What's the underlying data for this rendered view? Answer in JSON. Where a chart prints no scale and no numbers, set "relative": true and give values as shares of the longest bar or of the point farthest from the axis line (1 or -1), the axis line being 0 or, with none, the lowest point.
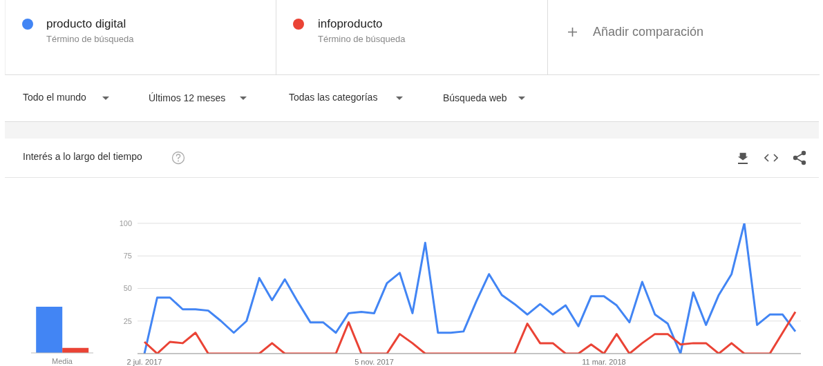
{
  "chart_data": [
    {
      "type": "bar",
      "relative": true,
      "categories": [
        "Media"
      ],
      "series": [
        {
          "color": "#4285f4",
          "values": [
            1
          ]
        },
        {
          "color": "#ea4335",
          "values": [
            0.11
          ]
        }
      ]
    },
    {
      "type": "line",
      "title": "Interés a lo largo del tiempo",
      "annotations": [
        "Término de búsqueda",
        "Término de búsqueda",
        "Añadir comparación",
        "Todo el mundo",
        "Últimos 12 meses",
        "Todas las categorías",
        "Búsqueda web"
      ],
      "categories": [
        "2 jul. 2017",
        null,
        null,
        null,
        null,
        null,
        null,
        null,
        null,
        null,
        null,
        null,
        null,
        null,
        null,
        null,
        null,
        null,
        "5 nov. 2017",
        null,
        null,
        null,
        null,
        null,
        null,
        null,
        null,
        null,
        null,
        null,
        null,
        null,
        null,
        null,
        null,
        null,
        "11 mar. 2018",
        null,
        null,
        null,
        null,
        null,
        null,
        null,
        null,
        null,
        null,
        null,
        null,
        null,
        null,
        null
      ],
      "series": [
        {
          "name": "producto digital",
          "color": "#4285f4",
          "values": [
            0,
            43,
            43,
            34,
            34,
            33,
            25,
            16,
            25,
            58,
            41,
            57,
            40,
            24,
            24,
            16,
            31,
            32,
            31,
            54,
            62,
            31,
            85,
            16,
            16,
            17,
            40,
            61,
            45,
            38,
            30,
            38,
            30,
            37,
            21,
            44,
            44,
            37,
            24,
            55,
            30,
            23,
            0,
            47,
            22,
            45,
            61,
            100,
            22,
            30,
            30,
            17
          ]
        },
        {
          "name": "infoproducto",
          "color": "#ea4335",
          "values": [
            9,
            0,
            9,
            8,
            16,
            0,
            0,
            0,
            0,
            0,
            8,
            0,
            0,
            0,
            0,
            0,
            24,
            0,
            0,
            0,
            15,
            8,
            0,
            0,
            0,
            0,
            0,
            0,
            0,
            0,
            23,
            8,
            8,
            0,
            0,
            7,
            0,
            15,
            0,
            8,
            15,
            15,
            7,
            8,
            8,
            0,
            8,
            0,
            0,
            0,
            16,
            32
          ]
        }
      ],
      "ylim": [
        0,
        100
      ],
      "yticks": [
        25,
        50,
        75,
        100
      ],
      "grid": "y",
      "legend": "top left",
      "marker": "none",
      "line_style": "solid"
    }
  ]
}
